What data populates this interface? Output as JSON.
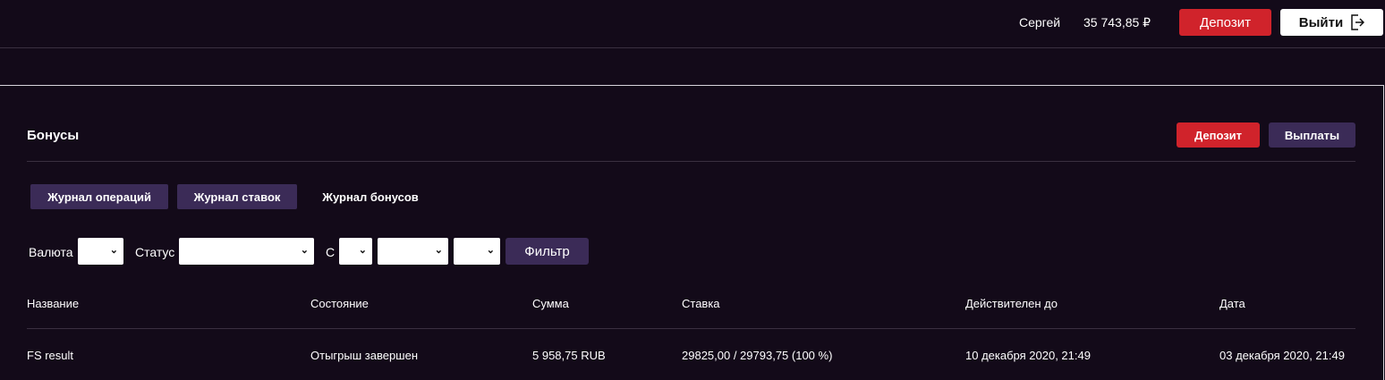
{
  "header": {
    "user": "Сергей",
    "balance": "35 743,85 ₽",
    "deposit": "Депозит",
    "logout": "Выйти"
  },
  "panel": {
    "title": "Бонусы",
    "deposit": "Депозит",
    "payouts": "Выплаты"
  },
  "tabs": [
    {
      "label": "Журнал операций"
    },
    {
      "label": "Журнал ставок"
    },
    {
      "label": "Журнал бонусов",
      "active": true
    }
  ],
  "filters": {
    "currency": "Валюта",
    "status": "Статус",
    "from": "С",
    "button": "Фильтр"
  },
  "table": {
    "headers": [
      "Название",
      "Состояние",
      "Сумма",
      "Ставка",
      "Действителен до",
      "Дата"
    ],
    "rows": [
      [
        "FS result",
        "Отыгрыш завершен",
        "5 958,75 RUB",
        "29825,00 / 29793,75 (100 %)",
        "10 декабря 2020, 21:49",
        "03 декабря 2020, 21:49"
      ]
    ]
  },
  "colors": {
    "background": "#130a19",
    "accent_red": "#d0232b",
    "accent_purple": "#3b2b57"
  }
}
